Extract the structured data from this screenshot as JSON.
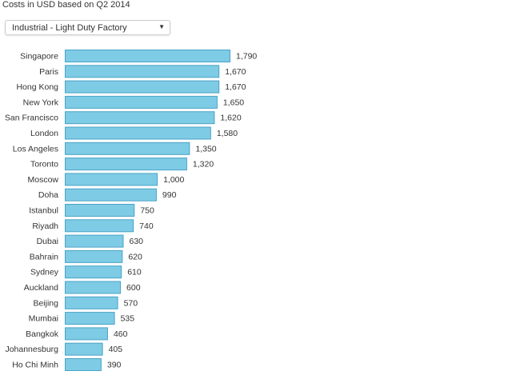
{
  "header": {
    "title": "Costs in USD based on Q2 2014"
  },
  "filter": {
    "selected": "Industrial - Light Duty Factory",
    "arrow_icon": "triangle-down"
  },
  "colors": {
    "bar": "#7ecbe5",
    "bar_border": "#4aa3c6"
  },
  "chart_data": {
    "type": "bar",
    "orientation": "horizontal",
    "title": "Costs in USD based on Q2 2014",
    "xlabel": "",
    "ylabel": "",
    "xlim": [
      0,
      1790
    ],
    "categories": [
      "Singapore",
      "Paris",
      "Hong Kong",
      "New York",
      "San Francisco",
      "London",
      "Los Angeles",
      "Toronto",
      "Moscow",
      "Doha",
      "Istanbul",
      "Riyadh",
      "Dubai",
      "Bahrain",
      "Sydney",
      "Auckland",
      "Beijing",
      "Mumbai",
      "Bangkok",
      "Johannesburg",
      "Ho Chi Minh"
    ],
    "values": [
      1790,
      1670,
      1670,
      1650,
      1620,
      1580,
      1350,
      1320,
      1000,
      990,
      750,
      740,
      630,
      620,
      610,
      600,
      570,
      535,
      460,
      405,
      390
    ],
    "value_labels": [
      "1,790",
      "1,670",
      "1,670",
      "1,650",
      "1,620",
      "1,580",
      "1,350",
      "1,320",
      "1,000",
      "990",
      "750",
      "740",
      "630",
      "620",
      "610",
      "600",
      "570",
      "535",
      "460",
      "405",
      "390"
    ]
  }
}
